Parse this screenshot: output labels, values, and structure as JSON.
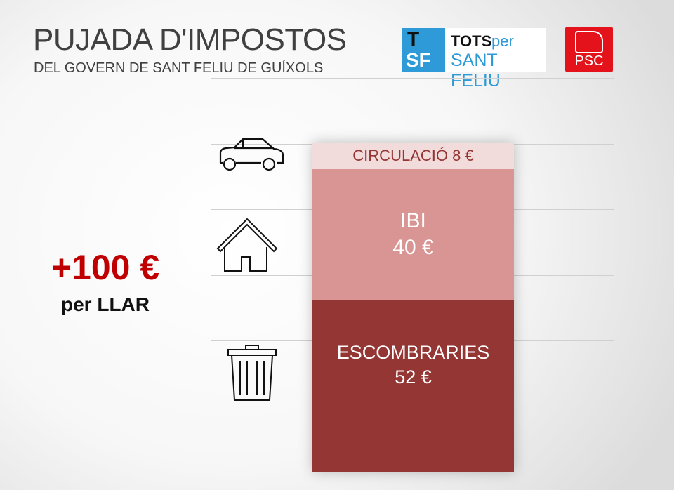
{
  "header": {
    "title": "PUJADA D'IMPOSTOS",
    "subtitle": "DEL GOVERN DE SANT FELIU DE GUÍXOLS"
  },
  "logos": {
    "tsf": {
      "mark_top": "T",
      "mark_bottom": "SF",
      "tots": "TOTS",
      "per": "per",
      "sant_feliu": "SANT FELIU"
    },
    "psc": {
      "text": "PSC"
    }
  },
  "summary": {
    "amount": "+100 €",
    "label": "per LLAR"
  },
  "chart_data": {
    "type": "bar",
    "stacked": true,
    "unit": "€",
    "total": 100,
    "categories": [
      "CIRCULACIÓ",
      "IBI",
      "ESCOMBRARIES"
    ],
    "values": [
      8,
      40,
      52
    ],
    "labels": [
      "CIRCULACIÓ 8 €",
      "IBI",
      "ESCOMBRARIES"
    ],
    "value_labels": [
      "",
      "40 €",
      "52 €"
    ],
    "colors": [
      "#f2dcdb",
      "#d99594",
      "#943634"
    ],
    "text_colors": [
      "#943634",
      "#ffffff",
      "#ffffff"
    ],
    "icons": [
      "car-icon",
      "house-icon",
      "trash-icon"
    ],
    "grid": true
  }
}
